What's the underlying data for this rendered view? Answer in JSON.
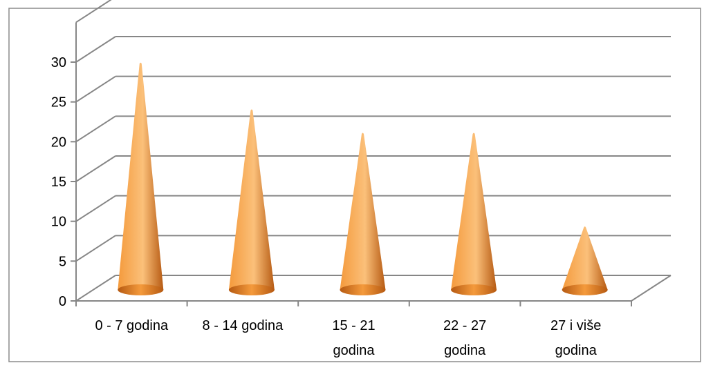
{
  "chart_data": {
    "type": "bar",
    "style": "3d-cone",
    "categories": [
      "0 - 7 godina",
      "8 - 14 godina",
      "15 - 21 godina",
      "22 - 27 godina",
      "27 i više godina"
    ],
    "category_label_lines": [
      [
        "0 - 7 godina"
      ],
      [
        "8 - 14 godina"
      ],
      [
        "15 - 21",
        "godina"
      ],
      [
        "22 - 27",
        "godina"
      ],
      [
        "27 i više",
        "godina"
      ]
    ],
    "values": [
      29,
      23,
      20,
      20,
      8
    ],
    "ylim": [
      0,
      30
    ],
    "yticks": [
      0,
      5,
      10,
      15,
      20,
      25,
      30
    ],
    "title": "",
    "xlabel": "",
    "ylabel": "",
    "grid": true,
    "legend": "none",
    "colors": {
      "cone_light": "#fbc07a",
      "cone_mid": "#f49a3c",
      "cone_dark": "#b65a12",
      "grid": "#868686",
      "frame": "#8c8c8c"
    }
  }
}
